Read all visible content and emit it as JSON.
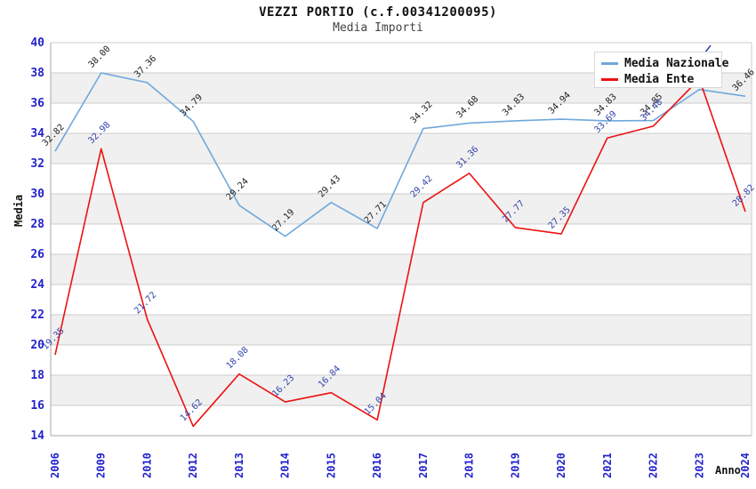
{
  "header": {
    "title": "VEZZI PORTIO (c.f.00341200095)",
    "subtitle": "Media Importi"
  },
  "axes": {
    "x_title": "Anno",
    "y_title": "Media",
    "y_ticks": [
      40,
      38,
      36,
      34,
      32,
      30,
      28,
      26,
      24,
      22,
      20,
      18,
      16,
      14
    ]
  },
  "legend": {
    "position": "top-right",
    "items": [
      {
        "label": "Media Nazionale",
        "color": "#6fa8dc"
      },
      {
        "label": "Media Ente",
        "color": "#ee1111"
      }
    ]
  },
  "colors": {
    "tick_label": "#2222cc",
    "grid_line": "#cccccc",
    "band_gray": "#f0f0f0",
    "axis_line": "#aaaaaa",
    "blue_series": "#6fa8dc",
    "red_series": "#ee1111",
    "blue_series_label": "#222222",
    "red_series_label": "#3344aa"
  },
  "chart_data": {
    "type": "line",
    "title": "VEZZI PORTIO (c.f.00341200095)",
    "subtitle": "Media Importi",
    "xlabel": "Anno",
    "ylabel": "Media",
    "ylim": [
      14,
      40
    ],
    "y_tick_step": 2,
    "grid": "horizontal gridlines with alternating gray bands",
    "legend_position": "top-right",
    "categories": [
      "2006",
      "2009",
      "2010",
      "2012",
      "2013",
      "2014",
      "2015",
      "2016",
      "2017",
      "2018",
      "2019",
      "2020",
      "2021",
      "2022",
      "2023",
      "2024"
    ],
    "series": [
      {
        "name": "Media Nazionale",
        "color": "#6fa8dc",
        "values": [
          32.82,
          38.0,
          37.36,
          34.79,
          29.24,
          27.19,
          29.43,
          27.71,
          34.32,
          34.68,
          34.83,
          34.94,
          34.83,
          34.85,
          36.9,
          36.46
        ],
        "labels": [
          "32.82",
          "38.00",
          "37.36",
          "34.79",
          "29.24",
          "27.19",
          "29.43",
          "27.71",
          "34.32",
          "34.68",
          "34.83",
          "34.94",
          "34.83",
          "34.85",
          "",
          "36.46"
        ]
      },
      {
        "name": "Media Ente",
        "color": "#ee1111",
        "values": [
          19.35,
          32.98,
          21.72,
          14.62,
          18.08,
          16.23,
          16.84,
          15.04,
          29.42,
          31.36,
          27.77,
          27.35,
          33.69,
          34.48,
          37.6,
          28.82
        ],
        "labels": [
          "19.35",
          "32.98",
          "21.72",
          "14.62",
          "18.08",
          "16.23",
          "16.84",
          "15.04",
          "29.42",
          "31.36",
          "27.77",
          "27.35",
          "33.69",
          "34.48",
          "",
          "28.82"
        ]
      }
    ]
  }
}
